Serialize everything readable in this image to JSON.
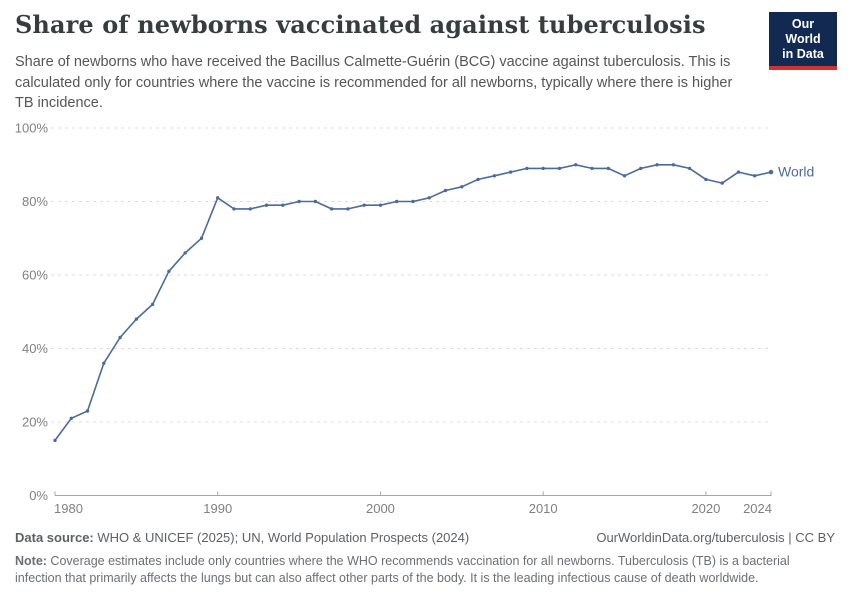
{
  "header": {
    "title": "Share of newborns vaccinated against tuberculosis",
    "subtitle": "Share of newborns who have received the Bacillus Calmette-Guérin (BCG) vaccine against tuberculosis. This is calculated only for countries where the vaccine is recommended for all newborns, typically where there is higher TB incidence.",
    "logo": {
      "line1": "Our World",
      "line2": "in Data"
    }
  },
  "chart_data": {
    "type": "line",
    "title": "Share of newborns vaccinated against tuberculosis",
    "series": [
      {
        "name": "World",
        "years": [
          1980,
          1981,
          1982,
          1983,
          1984,
          1985,
          1986,
          1987,
          1988,
          1989,
          1990,
          1991,
          1992,
          1993,
          1994,
          1995,
          1996,
          1997,
          1998,
          1999,
          2000,
          2001,
          2002,
          2003,
          2004,
          2005,
          2006,
          2007,
          2008,
          2009,
          2010,
          2011,
          2012,
          2013,
          2014,
          2015,
          2016,
          2017,
          2018,
          2019,
          2020,
          2021,
          2022,
          2023,
          2024
        ],
        "values": [
          15,
          21,
          23,
          36,
          43,
          48,
          52,
          61,
          66,
          70,
          81,
          78,
          78,
          79,
          79,
          80,
          80,
          78,
          78,
          79,
          79,
          80,
          80,
          81,
          83,
          84,
          86,
          87,
          88,
          89,
          89,
          89,
          90,
          89,
          89,
          87,
          89,
          90,
          90,
          89,
          86,
          85,
          88,
          87,
          88
        ]
      }
    ],
    "xlabel": "",
    "ylabel": "",
    "xlim": [
      1980,
      2024
    ],
    "ylim": [
      0,
      100
    ],
    "x_ticks": [
      1980,
      1990,
      2000,
      2010,
      2020,
      2024
    ],
    "y_ticks": [
      0,
      20,
      40,
      60,
      80,
      100
    ],
    "y_tick_suffix": "%",
    "grid": "horizontal-dashed",
    "legend_position": "end-of-line-label",
    "colors": {
      "line": "#4c6a9c",
      "grid": "#dcdcdc",
      "axis": "#a5a5a5",
      "tick_label": "#808080",
      "series_label": "#4c6a9c"
    }
  },
  "footer": {
    "data_source_label": "Data source:",
    "data_source_text": " WHO & UNICEF (2025); UN, World Population Prospects (2024)",
    "link": "OurWorldinData.org/tuberculosis | CC BY",
    "note_label": "Note:",
    "note_text": " Coverage estimates include only countries where the WHO recommends vaccination for all newborns. Tuberculosis (TB) is a bacterial infection that primarily affects the lungs but can also affect other parts of the body. It is the leading infectious cause of death worldwide."
  }
}
